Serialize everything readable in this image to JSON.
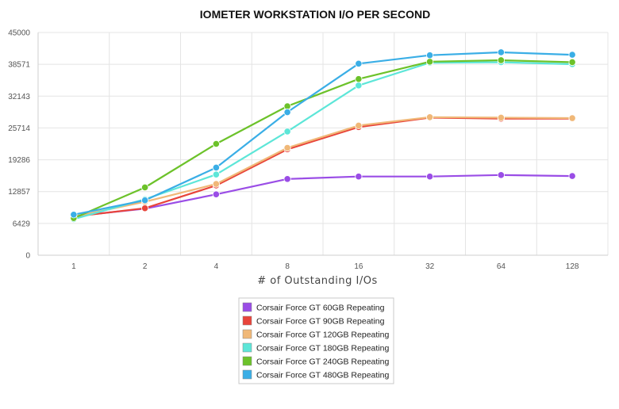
{
  "chart_data": {
    "type": "line",
    "title": "IOMETER WORKSTATION I/O PER SECOND",
    "xlabel": "# of Outstanding I/Os",
    "ylabel": "",
    "categories": [
      "1",
      "2",
      "4",
      "8",
      "16",
      "32",
      "64",
      "128"
    ],
    "yticks": [
      "0",
      "6429",
      "12857",
      "19286",
      "25714",
      "32143",
      "38571",
      "45000"
    ],
    "ylim": [
      0,
      45000
    ],
    "grid": true,
    "legend_position": "bottom-center",
    "series": [
      {
        "name": "Corsair Force GT 60GB Repeating",
        "color": "#9a4de6",
        "values": [
          7900,
          9400,
          12300,
          15400,
          15900,
          15900,
          16200,
          16000
        ]
      },
      {
        "name": "Corsair Force GT 90GB Repeating",
        "color": "#e8443a",
        "values": [
          7800,
          9500,
          14100,
          21400,
          25900,
          27800,
          27600,
          27600
        ]
      },
      {
        "name": "Corsair Force GT 120GB Repeating",
        "color": "#f0b878",
        "values": [
          7800,
          10800,
          14400,
          21700,
          26200,
          27900,
          27800,
          27700
        ]
      },
      {
        "name": "Corsair Force GT 180GB Repeating",
        "color": "#5de6d8",
        "values": [
          7300,
          11300,
          16300,
          25000,
          34300,
          38900,
          39000,
          38600
        ]
      },
      {
        "name": "Corsair Force GT 240GB Repeating",
        "color": "#6cc22a",
        "values": [
          7500,
          13700,
          22500,
          30100,
          35600,
          39100,
          39400,
          39000
        ]
      },
      {
        "name": "Corsair Force GT 480GB Repeating",
        "color": "#3aaee6",
        "values": [
          8200,
          11100,
          17700,
          28900,
          38700,
          40400,
          41000,
          40500
        ]
      }
    ]
  }
}
